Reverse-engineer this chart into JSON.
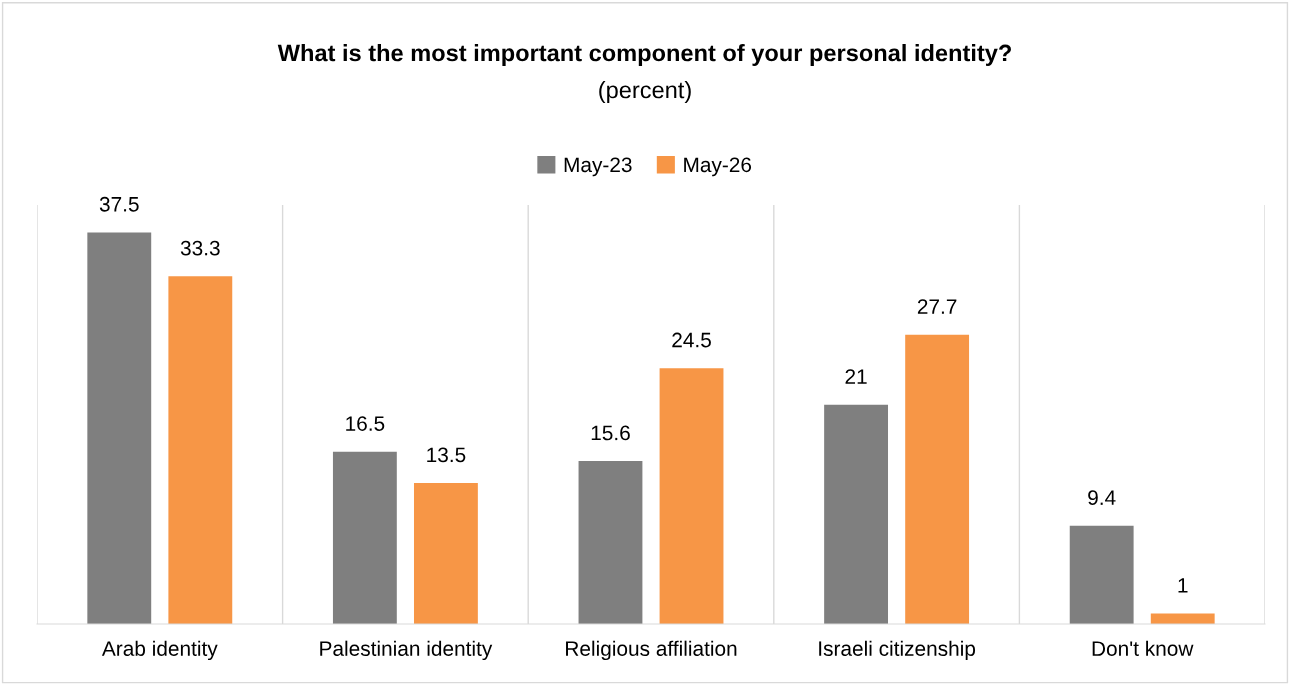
{
  "chart_data": {
    "type": "bar",
    "title": "What is the most important component of your personal identity?",
    "subtitle": "(percent)",
    "categories": [
      "Arab identity",
      "Palestinian identity",
      "Religious affiliation",
      "Israeli citizenship",
      "Don't know"
    ],
    "series": [
      {
        "name": "May-23",
        "color": "#7f7f7f",
        "values": [
          37.5,
          16.5,
          15.6,
          21,
          9.4
        ]
      },
      {
        "name": "May-26",
        "color": "#f79646",
        "values": [
          33.3,
          13.5,
          24.5,
          27.7,
          1
        ]
      }
    ],
    "data_labels": true,
    "grid": "x",
    "legend": "top"
  }
}
